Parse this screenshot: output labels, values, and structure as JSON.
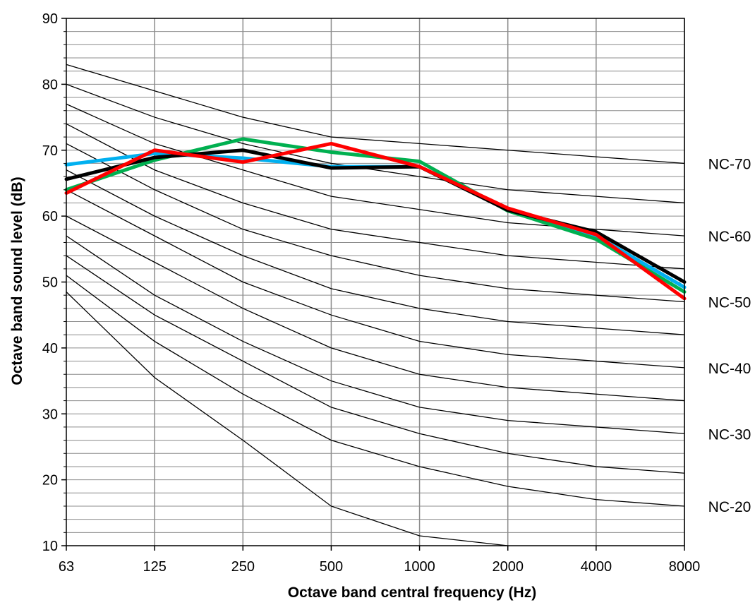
{
  "chart_data": {
    "type": "line",
    "title": "",
    "xlabel": "Octave band central frequency (Hz)",
    "ylabel": "Octave  band  sound level  (dB)",
    "categories": [
      "63",
      "125",
      "250",
      "500",
      "1000",
      "2000",
      "4000",
      "8000"
    ],
    "ylim": [
      10,
      90
    ],
    "y_ticks": [
      "10",
      "20",
      "30",
      "40",
      "50",
      "60",
      "70",
      "80",
      "90"
    ],
    "grid": true,
    "nc_curves": [
      {
        "label": "NC-70",
        "values": [
          83,
          79,
          75,
          72,
          71,
          70,
          69,
          68
        ]
      },
      {
        "label": "",
        "values": [
          80,
          75,
          71,
          68,
          66,
          64,
          63,
          62
        ]
      },
      {
        "label": "NC-60",
        "values": [
          77,
          71,
          67,
          63,
          61,
          59,
          58,
          57
        ]
      },
      {
        "label": "",
        "values": [
          74,
          67,
          62,
          58,
          56,
          54,
          53,
          52
        ]
      },
      {
        "label": "NC-50",
        "values": [
          71,
          64,
          58,
          54,
          51,
          49,
          48,
          47
        ]
      },
      {
        "label": "",
        "values": [
          67,
          60,
          54,
          49,
          46,
          44,
          43,
          42
        ]
      },
      {
        "label": "NC-40",
        "values": [
          64,
          57,
          50,
          45,
          41,
          39,
          38,
          37
        ]
      },
      {
        "label": "",
        "values": [
          60,
          53,
          46,
          40,
          36,
          34,
          33,
          32
        ]
      },
      {
        "label": "NC-30",
        "values": [
          57,
          48,
          41,
          35,
          31,
          29,
          28,
          27
        ]
      },
      {
        "label": "",
        "values": [
          54,
          45,
          38,
          31,
          27,
          24,
          22,
          21
        ]
      },
      {
        "label": "NC-20",
        "values": [
          51,
          41,
          33,
          26,
          22,
          19,
          17,
          16
        ]
      },
      {
        "label": "",
        "values": [
          48.5,
          35.5,
          26,
          16,
          11.5,
          10
        ]
      }
    ],
    "series": [
      {
        "color": "#00b0f0",
        "values": [
          67.8,
          69.5,
          68.8,
          67.5,
          67.5,
          61,
          57,
          49.2
        ]
      },
      {
        "color": "#00b050",
        "values": [
          64,
          68.5,
          71.7,
          69.7,
          68.3,
          60.8,
          56.5,
          48.5
        ]
      },
      {
        "color": "#000000",
        "values": [
          65.6,
          68.9,
          70,
          67.3,
          67.5,
          60.9,
          57.6,
          50
        ]
      },
      {
        "color": "#ff0000",
        "values": [
          63.5,
          70,
          68.2,
          71,
          67.5,
          61.2,
          57.2,
          47.5
        ]
      }
    ]
  }
}
